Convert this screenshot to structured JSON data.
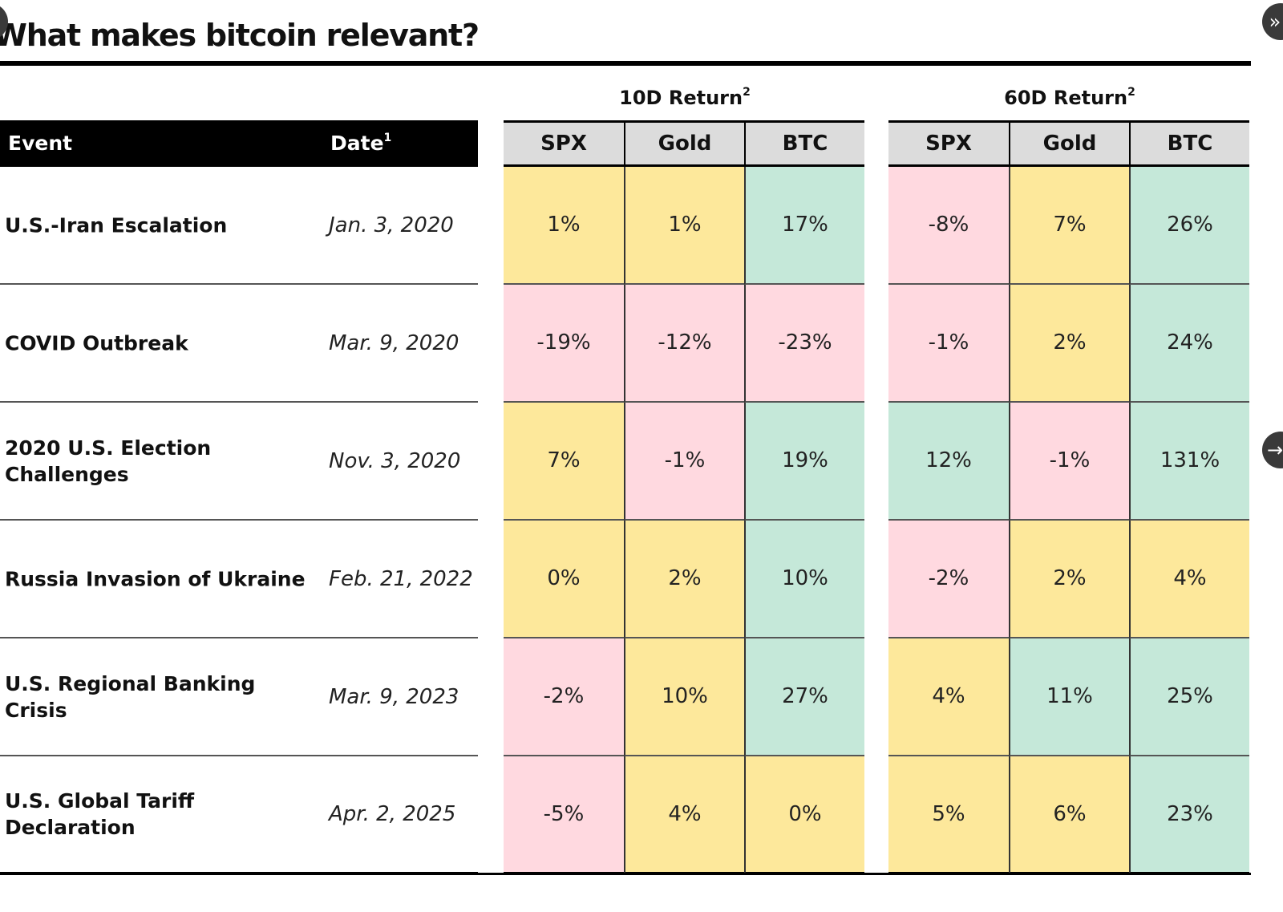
{
  "title": "What makes bitcoin relevant?",
  "colors": {
    "negative": "#ffd9e0",
    "neutral": "#fde89b",
    "positive": "#c5e8d9",
    "header_bg": "#000000",
    "subheader_bg": "#dcdcdc"
  },
  "nav": {
    "left_icon": "chevron-icon",
    "top_right_icon": "double-chevron-right-icon",
    "top_right_glyph": "»",
    "mid_right_icon": "arrow-right-icon",
    "mid_right_glyph": "→"
  },
  "table": {
    "event_header": "Event",
    "date_header": "Date",
    "date_footnote": "1",
    "groups": [
      {
        "label": "10D Return",
        "footnote": "2",
        "columns": [
          "SPX",
          "Gold",
          "BTC"
        ]
      },
      {
        "label": "60D Return",
        "footnote": "2",
        "columns": [
          "SPX",
          "Gold",
          "BTC"
        ]
      }
    ],
    "rows": [
      {
        "event": "U.S.-Iran Escalation",
        "date": "Jan. 3, 2020",
        "values": [
          "1%",
          "1%",
          "17%",
          "-8%",
          "7%",
          "26%"
        ],
        "colors": [
          "neutral",
          "neutral",
          "positive",
          "negative",
          "neutral",
          "positive"
        ]
      },
      {
        "event": "COVID Outbreak",
        "date": "Mar. 9, 2020",
        "values": [
          "-19%",
          "-12%",
          "-23%",
          "-1%",
          "2%",
          "24%"
        ],
        "colors": [
          "negative",
          "negative",
          "negative",
          "negative",
          "neutral",
          "positive"
        ]
      },
      {
        "event": "2020 U.S. Election Challenges",
        "date": "Nov. 3, 2020",
        "values": [
          "7%",
          "-1%",
          "19%",
          "12%",
          "-1%",
          "131%"
        ],
        "colors": [
          "neutral",
          "negative",
          "positive",
          "positive",
          "negative",
          "positive"
        ]
      },
      {
        "event": "Russia Invasion of Ukraine",
        "date": "Feb. 21, 2022",
        "values": [
          "0%",
          "2%",
          "10%",
          "-2%",
          "2%",
          "4%"
        ],
        "colors": [
          "neutral",
          "neutral",
          "positive",
          "negative",
          "neutral",
          "neutral"
        ]
      },
      {
        "event": "U.S. Regional Banking Crisis",
        "date": "Mar. 9, 2023",
        "values": [
          "-2%",
          "10%",
          "27%",
          "4%",
          "11%",
          "25%"
        ],
        "colors": [
          "negative",
          "neutral",
          "positive",
          "neutral",
          "positive",
          "positive"
        ]
      },
      {
        "event": "U.S. Global Tariff Declaration",
        "date": "Apr. 2, 2025",
        "values": [
          "-5%",
          "4%",
          "0%",
          "5%",
          "6%",
          "23%"
        ],
        "colors": [
          "negative",
          "neutral",
          "neutral",
          "neutral",
          "neutral",
          "positive"
        ]
      }
    ]
  }
}
